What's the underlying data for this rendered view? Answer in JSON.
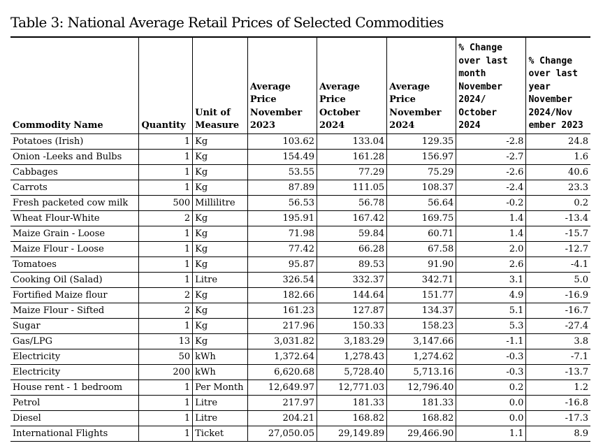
{
  "title": "Table 3: National Average Retail Prices of Selected Commodities",
  "headers": [
    "Commodity Name",
    "Quantity",
    "Unit of Measure",
    "Average Price November 2023",
    "Average Price October 2024",
    "Average Price November 2024",
    "% Change over last month November 2024/ October 2024",
    "% Change over last year November 2024/Nov ember 2023"
  ],
  "rows": [
    {
      "name": "Potatoes (Irish)",
      "qty": "1",
      "unit": "Kg",
      "nov23": "103.62",
      "oct24": "133.04",
      "nov24": "129.35",
      "mom": "-2.8",
      "yoy": "24.8"
    },
    {
      "name": "Onion -Leeks and Bulbs",
      "qty": "1",
      "unit": "Kg",
      "nov23": "154.49",
      "oct24": "161.28",
      "nov24": "156.97",
      "mom": "-2.7",
      "yoy": "1.6"
    },
    {
      "name": "Cabbages",
      "qty": "1",
      "unit": "Kg",
      "nov23": "53.55",
      "oct24": "77.29",
      "nov24": "75.29",
      "mom": "-2.6",
      "yoy": "40.6"
    },
    {
      "name": "Carrots",
      "qty": "1",
      "unit": "Kg",
      "nov23": "87.89",
      "oct24": "111.05",
      "nov24": "108.37",
      "mom": "-2.4",
      "yoy": "23.3"
    },
    {
      "name": "Fresh packeted cow milk",
      "qty": "500",
      "unit": "Millilitre",
      "nov23": "56.53",
      "oct24": "56.78",
      "nov24": "56.64",
      "mom": "-0.2",
      "yoy": "0.2"
    },
    {
      "name": "Wheat Flour-White",
      "qty": "2",
      "unit": "Kg",
      "nov23": "195.91",
      "oct24": "167.42",
      "nov24": "169.75",
      "mom": "1.4",
      "yoy": "-13.4"
    },
    {
      "name": "Maize Grain - Loose",
      "qty": "1",
      "unit": "Kg",
      "nov23": "71.98",
      "oct24": "59.84",
      "nov24": "60.71",
      "mom": "1.4",
      "yoy": "-15.7"
    },
    {
      "name": "Maize Flour - Loose",
      "qty": "1",
      "unit": "Kg",
      "nov23": "77.42",
      "oct24": "66.28",
      "nov24": "67.58",
      "mom": "2.0",
      "yoy": "-12.7"
    },
    {
      "name": "Tomatoes",
      "qty": "1",
      "unit": "Kg",
      "nov23": "95.87",
      "oct24": "89.53",
      "nov24": "91.90",
      "mom": "2.6",
      "yoy": "-4.1"
    },
    {
      "name": "Cooking Oil (Salad)",
      "qty": "1",
      "unit": "Litre",
      "nov23": "326.54",
      "oct24": "332.37",
      "nov24": "342.71",
      "mom": "3.1",
      "yoy": "5.0"
    },
    {
      "name": "Fortified Maize flour",
      "qty": "2",
      "unit": "Kg",
      "nov23": "182.66",
      "oct24": "144.64",
      "nov24": "151.77",
      "mom": "4.9",
      "yoy": "-16.9"
    },
    {
      "name": "Maize Flour - Sifted",
      "qty": "2",
      "unit": "Kg",
      "nov23": "161.23",
      "oct24": "127.87",
      "nov24": "134.37",
      "mom": "5.1",
      "yoy": "-16.7"
    },
    {
      "name": "Sugar",
      "qty": "1",
      "unit": "Kg",
      "nov23": "217.96",
      "oct24": "150.33",
      "nov24": "158.23",
      "mom": "5.3",
      "yoy": "-27.4"
    },
    {
      "name": "Gas/LPG",
      "qty": "13",
      "unit": "Kg",
      "nov23": "3,031.82",
      "oct24": "3,183.29",
      "nov24": "3,147.66",
      "mom": "-1.1",
      "yoy": "3.8"
    },
    {
      "name": "Electricity",
      "qty": "50",
      "unit": "kWh",
      "nov23": "1,372.64",
      "oct24": "1,278.43",
      "nov24": "1,274.62",
      "mom": "-0.3",
      "yoy": "-7.1"
    },
    {
      "name": "Electricity",
      "qty": "200",
      "unit": "kWh",
      "nov23": "6,620.68",
      "oct24": "5,728.40",
      "nov24": "5,713.16",
      "mom": "-0.3",
      "yoy": "-13.7"
    },
    {
      "name": "House rent - 1 bedroom",
      "qty": "1",
      "unit": "Per Month",
      "nov23": "12,649.97",
      "oct24": "12,771.03",
      "nov24": "12,796.40",
      "mom": "0.2",
      "yoy": "1.2"
    },
    {
      "name": "Petrol",
      "qty": "1",
      "unit": "Litre",
      "nov23": "217.97",
      "oct24": "181.33",
      "nov24": "181.33",
      "mom": "0.0",
      "yoy": "-16.8"
    },
    {
      "name": "Diesel",
      "qty": "1",
      "unit": "Litre",
      "nov23": "204.21",
      "oct24": "168.82",
      "nov24": "168.82",
      "mom": "0.0",
      "yoy": "-17.3"
    },
    {
      "name": "International Flights",
      "qty": "1",
      "unit": "Ticket",
      "nov23": "27,050.05",
      "oct24": "29,149.89",
      "nov24": "29,466.90",
      "mom": "1.1",
      "yoy": "8.9"
    }
  ]
}
